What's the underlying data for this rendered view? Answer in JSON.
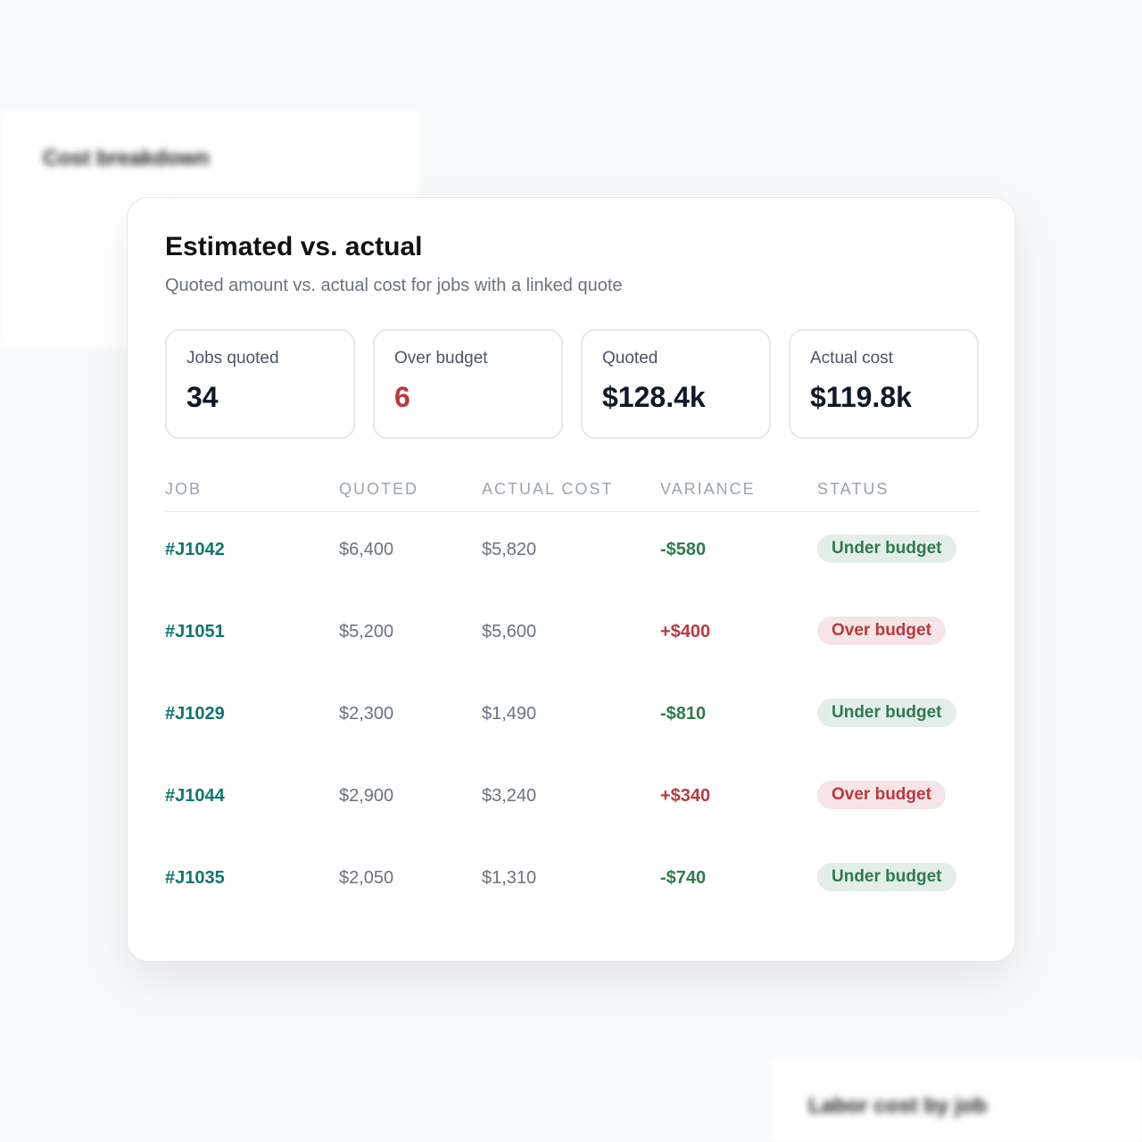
{
  "background": {
    "left_panel_title": "Cost breakdown",
    "right_panel_title": "Labor cost by job"
  },
  "card": {
    "title": "Estimated vs. actual",
    "subtitle": "Quoted amount vs. actual cost for jobs with a linked quote",
    "stats": [
      {
        "label": "Jobs quoted",
        "value": "34",
        "color": "#111827"
      },
      {
        "label": "Over budget",
        "value": "6",
        "color": "#b83a3f"
      },
      {
        "label": "Quoted",
        "value": "$128.4k",
        "color": "#111827"
      },
      {
        "label": "Actual cost",
        "value": "$119.8k",
        "color": "#111827"
      }
    ],
    "table": {
      "columns": [
        "JOB",
        "QUOTED",
        "ACTUAL COST",
        "VARIANCE",
        "STATUS"
      ],
      "rows": [
        {
          "job": "#J1042",
          "quoted": "$6,400",
          "actual": "$5,820",
          "variance": "-$580",
          "status": "Under budget",
          "color": "#2f7a4f"
        },
        {
          "job": "#J1051",
          "quoted": "$5,200",
          "actual": "$5,600",
          "variance": "+$400",
          "status": "Over budget",
          "color": "#b83a3f"
        },
        {
          "job": "#J1029",
          "quoted": "$2,300",
          "actual": "$1,490",
          "variance": "-$810",
          "status": "Under budget",
          "color": "#2f7a4f"
        },
        {
          "job": "#J1044",
          "quoted": "$2,900",
          "actual": "$3,240",
          "variance": "+$340",
          "status": "Over budget",
          "color": "#b83a3f"
        },
        {
          "job": "#J1035",
          "quoted": "$2,050",
          "actual": "$1,310",
          "variance": "-$740",
          "status": "Under budget",
          "color": "#2f7a4f"
        }
      ]
    }
  }
}
